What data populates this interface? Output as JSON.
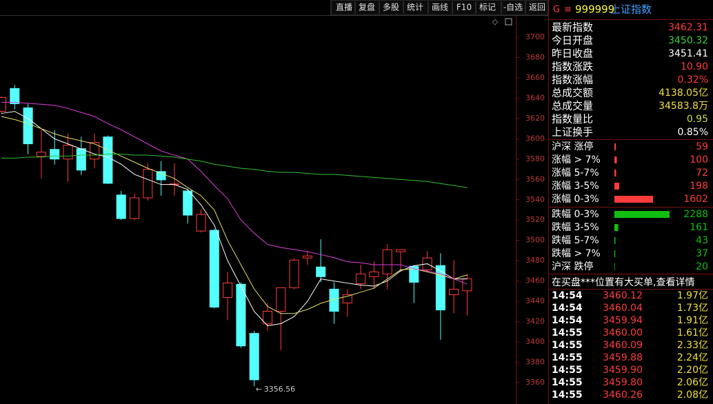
{
  "toolbar": {
    "buttons": [
      "直播",
      "复盘",
      "多股",
      "统计",
      "画线",
      "F10",
      "标记",
      "-自选",
      "返回"
    ]
  },
  "chart_data": {
    "type": "candlestick",
    "ylim": [
      3338.9,
      3721.1
    ],
    "yticks": [
      3360,
      3380,
      3400,
      3420,
      3440,
      3460,
      3480,
      3500,
      3520,
      3540,
      3560,
      3580,
      3600,
      3620,
      3640,
      3660,
      3680,
      3700
    ],
    "open": [
      3627.1,
      3649.6,
      3630.5,
      3582.8,
      3589.6,
      3580.1,
      3590.3,
      3580.1,
      3601.9,
      3544.7,
      3521.5,
      3541.9,
      3567.8,
      3554.9,
      3548.7,
      3509.2,
      3509.9,
      3443.8,
      3456.8,
      3408.4,
      3417.9,
      3430.2,
      3453.4,
      3482.7,
      3473.8,
      3452.0,
      3438.4,
      3457.4,
      3464.3,
      3467.0,
      3488.8,
      3474.5,
      3471.1,
      3475.2,
      3446.5,
      3450.32
    ],
    "high": [
      3642,
      3653.0,
      3634.6,
      3608.7,
      3608.7,
      3605.3,
      3601.9,
      3605.3,
      3603.3,
      3548.7,
      3546,
      3576.0,
      3578.0,
      3576.0,
      3550.8,
      3530.4,
      3511.3,
      3469.0,
      3458.8,
      3411.1,
      3438.4,
      3453.4,
      3482.7,
      3489.5,
      3501.1,
      3458.8,
      3452.0,
      3475.8,
      3479.2,
      3496.3,
      3491.5,
      3475.8,
      3489.5,
      3487.4,
      3480.6,
      3467.0
    ],
    "low": [
      3625,
      3629.2,
      3584.9,
      3561.0,
      3574.6,
      3557.6,
      3564.4,
      3571.2,
      3555.6,
      3520.1,
      3520,
      3539.2,
      3544.0,
      3544.0,
      3516.7,
      3507.9,
      3432.9,
      3421.3,
      3394.1,
      3356.56,
      3411.1,
      3392.0,
      3452.0,
      3475.8,
      3458.8,
      3417.9,
      3424.7,
      3452.0,
      3452.0,
      3452.0,
      3469.0,
      3438.4,
      3469.0,
      3402.2,
      3428.1,
      3426.1
    ],
    "close": [
      3640.7,
      3634.6,
      3595.1,
      3586.9,
      3580.1,
      3593.7,
      3569.2,
      3596.4,
      3556.2,
      3521.5,
      3541.9,
      3569.9,
      3559.6,
      3555.6,
      3524.9,
      3525.6,
      3434.3,
      3458.1,
      3396.1,
      3362.7,
      3430.2,
      3453.4,
      3480.6,
      3484.7,
      3464.3,
      3430.2,
      3446.5,
      3467.0,
      3469.0,
      3490.8,
      3490.8,
      3458.8,
      3482.7,
      3431.5,
      3452.0,
      3462.31
    ],
    "up_color": "#ff3c3c",
    "down_color": "#54ffff",
    "series": [
      {
        "color": "#ffffff",
        "values": [
          3625,
          3627,
          3620,
          3610,
          3600,
          3595,
          3590,
          3585,
          3582,
          3575,
          3565,
          3560,
          3555,
          3555,
          3550,
          3535,
          3515,
          3480,
          3455,
          3430,
          3416,
          3418,
          3425,
          3440,
          3462,
          3460,
          3458,
          3456,
          3455,
          3460,
          3470,
          3475,
          3477,
          3470,
          3462,
          3462
        ]
      },
      {
        "color": "#e8e060",
        "values": [
          3622,
          3619,
          3615,
          3610,
          3605,
          3601,
          3598,
          3595,
          3589,
          3583,
          3577,
          3571,
          3566,
          3561,
          3552,
          3544,
          3530,
          3500,
          3476,
          3452,
          3435,
          3428,
          3428,
          3432,
          3438,
          3442,
          3445,
          3449,
          3453,
          3462,
          3471,
          3472,
          3469,
          3466,
          3462,
          3466
        ]
      },
      {
        "color": "#e040e0",
        "values": [
          3636,
          3636,
          3635,
          3634,
          3633,
          3630,
          3626,
          3622,
          3615,
          3609,
          3602,
          3595,
          3588,
          3584,
          3580,
          3568,
          3554,
          3541,
          3520,
          3507,
          3496,
          3493,
          3491,
          3489,
          3486,
          3483,
          3479,
          3478,
          3476,
          3476,
          3476,
          3472,
          3470,
          3467,
          3462,
          3457
        ]
      },
      {
        "color": "#30c030",
        "values": [
          3581,
          3581,
          3582,
          3582,
          3583,
          3583,
          3584,
          3584,
          3585,
          3585,
          3584,
          3584,
          3583,
          3582,
          3580,
          3578,
          3575,
          3573,
          3571,
          3570,
          3568,
          3567,
          3567,
          3566,
          3565,
          3565,
          3564,
          3563,
          3562,
          3561,
          3560,
          3559,
          3558,
          3556,
          3554,
          3552
        ]
      }
    ],
    "low_annotation": 3356.56
  },
  "panel": {
    "badge": "G",
    "code": "999999",
    "name": "上证指数",
    "quote": [
      [
        "最新指数",
        "3462.31"
      ],
      [
        "今日开盘",
        "3450.32"
      ],
      [
        "昨日收盘",
        "3451.41"
      ],
      [
        "指数涨跌",
        "10.90"
      ],
      [
        "指数涨幅",
        "0.32%"
      ],
      [
        "总成交额",
        "4138.05亿"
      ],
      [
        "总成交量",
        "34583.8万"
      ],
      [
        "指数量比",
        "0.95"
      ],
      [
        "上证换手",
        "0.85%"
      ]
    ],
    "rise": [
      {
        "label": "沪深 涨停",
        "value": 59
      },
      {
        "label": "涨幅 > 7%",
        "value": 100
      },
      {
        "label": "涨幅 5-7%",
        "value": 72
      },
      {
        "label": "涨幅 3-5%",
        "value": 198
      },
      {
        "label": "涨幅 0-3%",
        "value": 1602
      }
    ],
    "fall": [
      {
        "label": "跌幅 0-3%",
        "value": 2288
      },
      {
        "label": "跌幅 3-5%",
        "value": 161
      },
      {
        "label": "跌幅 5-7%",
        "value": 43
      },
      {
        "label": "跌幅 > 7%",
        "value": 37
      },
      {
        "label": "沪深 跌停",
        "value": 20
      }
    ],
    "notice": "在买盘***位置有大买单,查看详情",
    "ticks": [
      [
        "14:54",
        "3460.12",
        "1.97亿"
      ],
      [
        "14:54",
        "3460.04",
        "1.73亿"
      ],
      [
        "14:54",
        "3459.94",
        "1.91亿"
      ],
      [
        "14:55",
        "3460.00",
        "1.61亿"
      ],
      [
        "14:55",
        "3460.09",
        "2.33亿"
      ],
      [
        "14:55",
        "3459.88",
        "2.24亿"
      ],
      [
        "14:55",
        "3459.90",
        "2.20亿"
      ],
      [
        "14:55",
        "3459.80",
        "2.06亿"
      ],
      [
        "14:55",
        "3460.26",
        "2.08亿"
      ]
    ]
  }
}
